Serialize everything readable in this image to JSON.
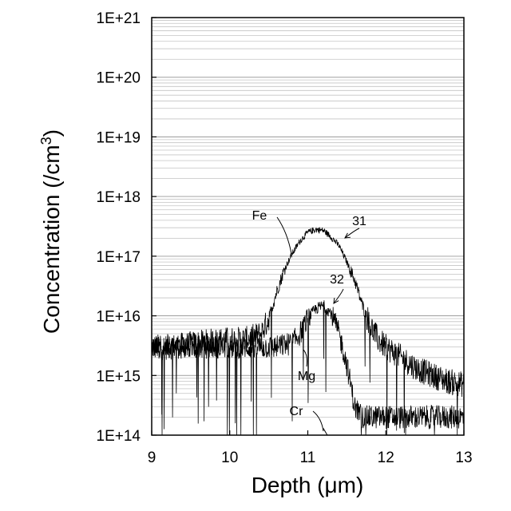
{
  "chart_data": {
    "type": "line",
    "title": "",
    "xlabel": "Depth (μm)",
    "ylabel_main": "Concentration (/cm",
    "ylabel_sup": "3",
    "ylabel_close": ")",
    "xlim": [
      9,
      13
    ],
    "ylim": [
      100000000000000.0,
      1e+21
    ],
    "yscale": "log",
    "grid": "horizontal minor and major",
    "x_ticks": [
      9,
      10,
      11,
      12,
      13
    ],
    "x_tick_labels": [
      "9",
      "10",
      "11",
      "12",
      "13"
    ],
    "y_ticks": [
      100000000000000.0,
      1000000000000000.0,
      1e+16,
      1e+17,
      1e+18,
      1e+19,
      1e+20,
      1e+21
    ],
    "y_tick_labels": [
      "1E+14",
      "1E+15",
      "1E+16",
      "1E+17",
      "1E+18",
      "1E+19",
      "1E+20",
      "1E+21"
    ],
    "series": [
      {
        "name": "Fe",
        "x": [
          9.0,
          9.2,
          9.4,
          9.6,
          9.8,
          10.0,
          10.2,
          10.4,
          10.5,
          10.6,
          10.7,
          10.8,
          10.9,
          11.0,
          11.1,
          11.2,
          11.3,
          11.4,
          11.5,
          11.6,
          11.7,
          11.8,
          11.9,
          12.0,
          12.2,
          12.4,
          12.6,
          12.8,
          13.0
        ],
        "y": [
          3000000000000000.0,
          3000000000000000.0,
          3200000000000000.0,
          3500000000000000.0,
          3800000000000000.0,
          4000000000000000.0,
          4000000000000000.0,
          5000000000000000.0,
          9000000000000000.0,
          2.5e+16,
          6e+16,
          1.1e+17,
          1.8e+17,
          2.5e+17,
          2.8e+17,
          2.7e+17,
          2.1e+17,
          1.5e+17,
          8e+16,
          4e+16,
          1.5e+16,
          7000000000000000.0,
          4000000000000000.0,
          3000000000000000.0,
          2000000000000000.0,
          1300000000000000.0,
          1000000000000000.0,
          800000000000000.0,
          700000000000000.0
        ]
      },
      {
        "name": "Mg",
        "x": [
          9.0,
          9.2,
          9.4,
          9.6,
          9.8,
          10.0,
          10.2,
          10.4,
          10.6,
          10.8,
          10.9,
          11.0,
          11.1,
          11.2,
          11.3,
          11.4,
          11.5,
          11.55,
          11.6,
          11.7,
          11.8,
          12.0,
          12.2,
          12.4,
          12.6,
          12.8,
          13.0
        ],
        "y": [
          3000000000000000.0,
          3000000000000000.0,
          3000000000000000.0,
          3000000000000000.0,
          3000000000000000.0,
          3000000000000000.0,
          3000000000000000.0,
          3000000000000000.0,
          3000000000000000.0,
          3500000000000000.0,
          5000000000000000.0,
          9000000000000000.0,
          1.3e+16,
          1.5e+16,
          1.1e+16,
          5000000000000000.0,
          1500000000000000.0,
          700000000000000.0,
          300000000000000.0,
          200000000000000.0,
          200000000000000.0,
          200000000000000.0,
          200000000000000.0,
          200000000000000.0,
          200000000000000.0,
          200000000000000.0,
          200000000000000.0
        ]
      },
      {
        "name": "Cr",
        "x": [
          11.2,
          11.25
        ],
        "y": [
          130000000000000.0,
          100000000000000.0
        ]
      }
    ],
    "annotations": [
      {
        "text": "Fe",
        "target_series": "Fe"
      },
      {
        "text": "31",
        "target_series": "Fe"
      },
      {
        "text": "32",
        "target_series": "Mg"
      },
      {
        "text": "Mg",
        "target_series": "Mg"
      },
      {
        "text": "Cr",
        "target_series": "Cr"
      }
    ]
  }
}
